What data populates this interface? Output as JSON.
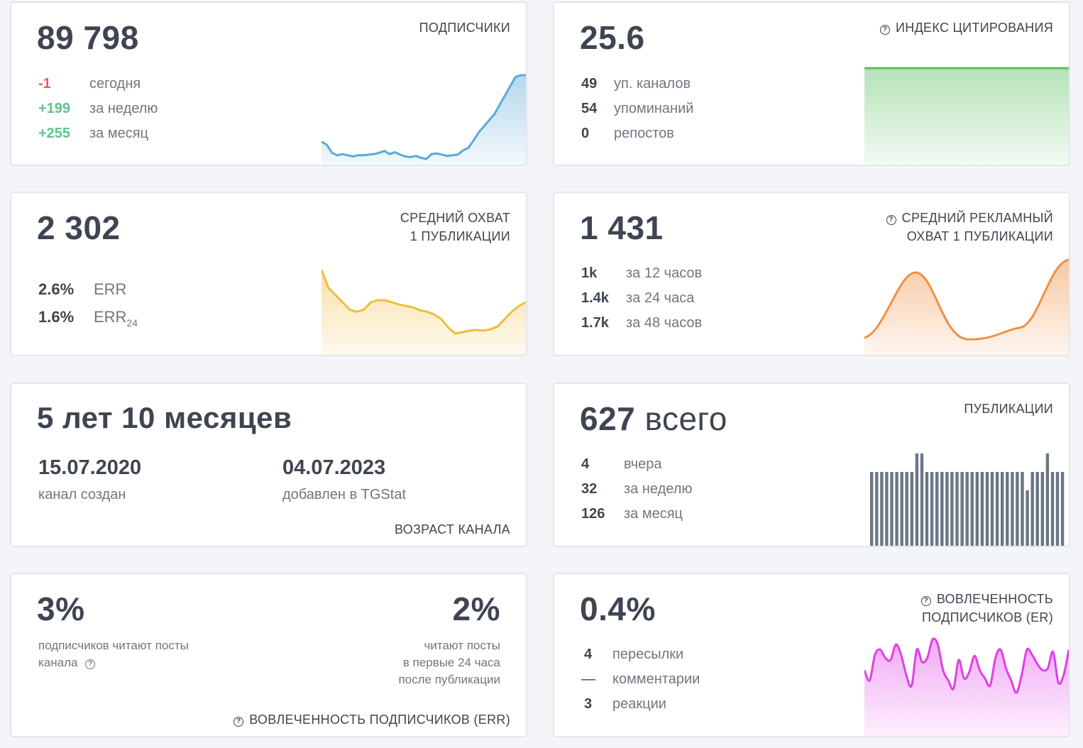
{
  "subscribers": {
    "value": "89 798",
    "label": "ПОДПИСЧИКИ",
    "rows": [
      {
        "value": "-1",
        "text": "сегодня"
      },
      {
        "value": "+199",
        "text": "за неделю"
      },
      {
        "value": "+255",
        "text": "за месяц"
      }
    ],
    "chart_color": "#5aaad6",
    "series": [
      30,
      35,
      48,
      52,
      50,
      52,
      54,
      52,
      52,
      51,
      50,
      48,
      45,
      50,
      47,
      51,
      54,
      55,
      53,
      56,
      58,
      50,
      49,
      51,
      53,
      52,
      51,
      44,
      40,
      28,
      15,
      5,
      -5,
      -15,
      -30,
      -45,
      -60,
      -75,
      -78,
      -78
    ]
  },
  "citation": {
    "value": "25.6",
    "label": "ИНДЕКС ЦИТИРОВАНИЯ",
    "rows": [
      {
        "value": "49",
        "text": "уп. каналов"
      },
      {
        "value": "54",
        "text": "упоминаний"
      },
      {
        "value": "0",
        "text": "репостов"
      }
    ],
    "chart_color": "#5cbf60"
  },
  "reach": {
    "value": "2 302",
    "label_line1": "СРЕДНИЙ ОХВАТ",
    "label_line2": "1 ПУБЛИКАЦИИ",
    "rows": [
      {
        "value": "2.6%",
        "text": "ERR",
        "sub": ""
      },
      {
        "value": "1.6%",
        "text": "ERR",
        "sub": "24"
      }
    ],
    "chart_color": "#f0bc3c",
    "series": [
      0,
      25,
      35,
      45,
      55,
      58,
      55,
      45,
      42,
      42,
      45,
      48,
      50,
      52,
      56,
      58,
      62,
      68,
      80,
      88,
      86,
      84,
      83,
      84,
      82,
      78,
      68,
      58,
      50,
      45
    ]
  },
  "ad_reach": {
    "value": "1 431",
    "label_line1": "СРЕДНИЙ РЕКЛАМНЫЙ",
    "label_line2": "ОХВАТ 1 ПУБЛИКАЦИИ",
    "rows": [
      {
        "value": "1k",
        "text": "за 12 часов"
      },
      {
        "value": "1.4k",
        "text": "за 24 часа"
      },
      {
        "value": "1.7k",
        "text": "за 48 часов"
      }
    ],
    "chart_color": "#ef9145"
  },
  "age": {
    "value": "5 лет 10 месяцев",
    "created_date": "15.07.2020",
    "created_label": "канал создан",
    "added_date": "04.07.2023",
    "added_label": "добавлен в TGStat",
    "label": "ВОЗРАСТ КАНАЛА"
  },
  "publications": {
    "value_num": "627",
    "value_text": "всего",
    "label": "ПУБЛИКАЦИИ",
    "rows": [
      {
        "value": "4",
        "text": "вчера"
      },
      {
        "value": "32",
        "text": "за неделю"
      },
      {
        "value": "126",
        "text": "за месяц"
      }
    ],
    "chart_color": "#6b7686",
    "bars": [
      4,
      4,
      4,
      4,
      4,
      4,
      4,
      4,
      4,
      5,
      5,
      4,
      4,
      4,
      4,
      4,
      4,
      4,
      4,
      4,
      4,
      4,
      4,
      4,
      4,
      4,
      4,
      4,
      4,
      4,
      4,
      3,
      4,
      4,
      4,
      5,
      4,
      4,
      4
    ]
  },
  "err": {
    "left_value": "3%",
    "left_line1": "подписчиков читают посты",
    "left_line2": "канала",
    "right_value": "2%",
    "right_line1": "читают посты",
    "right_line2": "в первые 24 часа",
    "right_line3": "после публикации",
    "label": "ВОВЛЕЧЕННОСТЬ ПОДПИСЧИКОВ (ERR)"
  },
  "er": {
    "value": "0.4%",
    "label_line1": "ВОВЛЕЧЕННОСТЬ",
    "label_line2": "ПОДПИСЧИКОВ (ER)",
    "rows": [
      {
        "value": "4",
        "text": "пересылки"
      },
      {
        "value": "—",
        "text": "комментарии"
      },
      {
        "value": "3",
        "text": "реакции"
      }
    ],
    "chart_color": "#e040e6",
    "series": [
      60,
      50,
      75,
      80,
      72,
      70,
      85,
      75,
      55,
      45,
      80,
      68,
      72,
      90,
      85,
      60,
      50,
      42,
      70,
      52,
      58,
      74,
      60,
      52,
      45,
      72,
      80,
      62,
      50,
      38,
      55,
      80,
      75,
      66,
      60,
      62,
      78,
      48,
      55,
      80
    ]
  },
  "question_icon": "question-circle-icon"
}
